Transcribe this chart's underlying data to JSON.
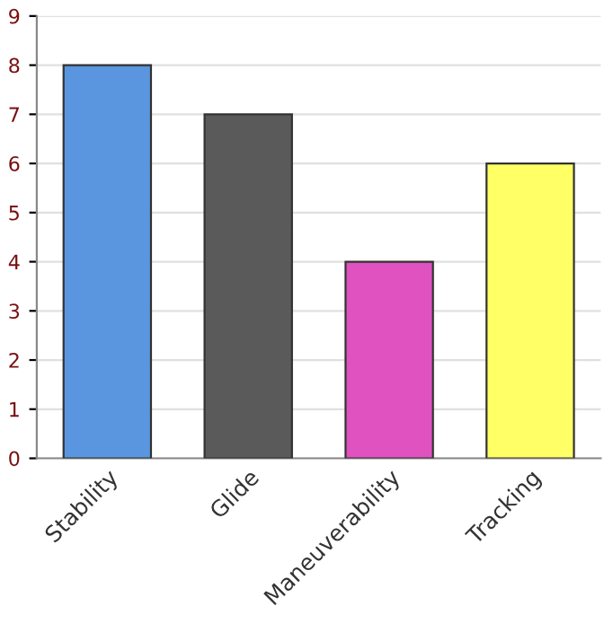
{
  "chart_data": {
    "type": "bar",
    "categories": [
      "Stability",
      "Glide",
      "Maneuverability",
      "Tracking"
    ],
    "values": [
      8,
      7,
      4,
      6
    ],
    "colors": [
      "#5a96e0",
      "#5a5a5a",
      "#e052c0",
      "#ffff66"
    ],
    "ylim": [
      0,
      9
    ],
    "yticks": [
      0,
      1,
      2,
      3,
      4,
      5,
      6,
      7,
      8,
      9
    ],
    "grid": "y"
  }
}
